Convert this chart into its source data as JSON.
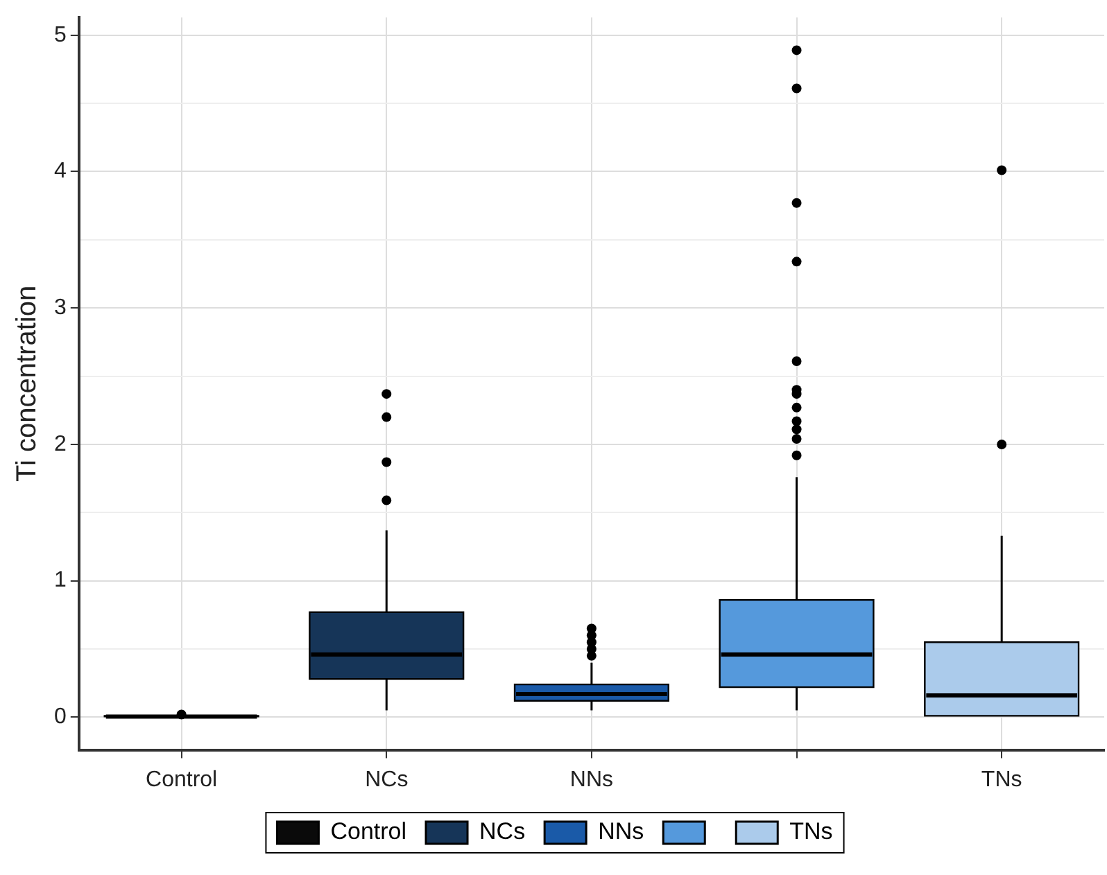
{
  "chart_data": {
    "type": "box",
    "ylabel": "Ti concentration",
    "categories": [
      "Control",
      "NCs",
      "NNs",
      null,
      "TNs"
    ],
    "series": [
      {
        "name": "Control",
        "color": "#0a0a0a",
        "boxes": [
          {
            "low": 0,
            "q1": 0,
            "median": 0.005,
            "q3": 0.01,
            "high": 0.01,
            "outliers": [
              0.02
            ]
          },
          null,
          null,
          null,
          null
        ]
      },
      {
        "name": "NCs",
        "color": "#163558",
        "boxes": [
          null,
          {
            "low": 0.05,
            "q1": 0.28,
            "median": 0.46,
            "q3": 0.77,
            "high": 1.37,
            "outliers": [
              1.59,
              1.87,
              2.2,
              2.37
            ]
          },
          null,
          null,
          null
        ]
      },
      {
        "name": "NNs",
        "color": "#1a5aa8",
        "boxes": [
          null,
          null,
          {
            "low": 0.05,
            "q1": 0.12,
            "median": 0.17,
            "q3": 0.24,
            "high": 0.4,
            "outliers": [
              0.45,
              0.5,
              0.55,
              0.6,
              0.65
            ]
          },
          null,
          null
        ]
      },
      {
        "color": "#5599dc",
        "boxes": [
          null,
          null,
          null,
          {
            "low": 0.05,
            "q1": 0.22,
            "median": 0.46,
            "q3": 0.86,
            "high": 1.76,
            "outliers": [
              1.92,
              2.04,
              2.11,
              2.17,
              2.27,
              2.37,
              2.4,
              2.61,
              3.34,
              3.77,
              4.61,
              4.89
            ]
          },
          null
        ]
      },
      {
        "name": "TNs",
        "color": "#abcbeb",
        "boxes": [
          null,
          null,
          null,
          null,
          {
            "low": 0.01,
            "q1": 0.01,
            "median": 0.16,
            "q3": 0.55,
            "high": 1.33,
            "outliers": [
              2.0,
              4.01
            ]
          }
        ]
      }
    ],
    "ylim": [
      -0.24,
      5.13
    ],
    "yticks": [
      0,
      {
        "value": 0.5,
        "label": null
      },
      1,
      {
        "value": 1.5,
        "label": null
      },
      2,
      {
        "value": 2.5,
        "label": null
      },
      3,
      {
        "value": 3.5,
        "label": null
      },
      4,
      {
        "value": 4.5,
        "label": null
      },
      5
    ],
    "grid": true,
    "legend": "bottom"
  }
}
